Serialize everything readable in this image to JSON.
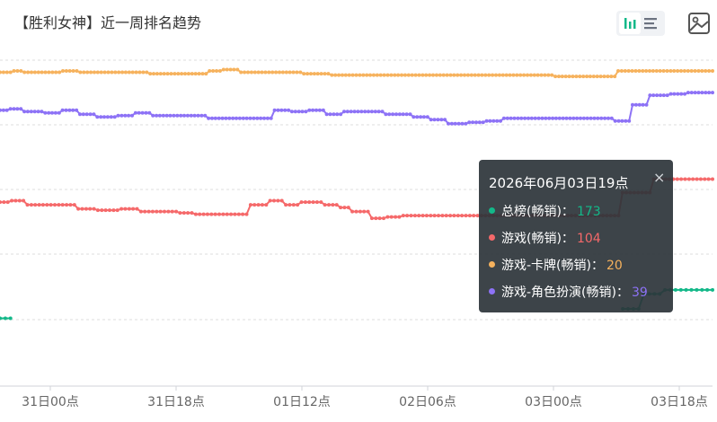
{
  "header": {
    "title": "【胜利女神】近一周排名趋势",
    "icons": {
      "bar_view": "bar-chart-icon",
      "list_view": "list-icon",
      "save_image": "image-icon"
    }
  },
  "chart_data": {
    "type": "line",
    "x_ticks": [
      "31日00点",
      "31日18点",
      "01日12点",
      "02日06点",
      "03日00点",
      "03日18点"
    ],
    "y_axis": {
      "inverse": true,
      "range": [
        0,
        250
      ],
      "grid": true
    },
    "series": [
      {
        "name": "总榜(畅销)",
        "color": "#13b889",
        "values": [
          203,
          203,
          203,
          null,
          null,
          null,
          null,
          null,
          null,
          null,
          null,
          null,
          null,
          null,
          null,
          null,
          null,
          null,
          null,
          null,
          null,
          null,
          null,
          null,
          null,
          null,
          null,
          null,
          null,
          null,
          null,
          null,
          null,
          null,
          null,
          null,
          null,
          null,
          null,
          null,
          null,
          null,
          null,
          null,
          null,
          null,
          null,
          null,
          null,
          null,
          null,
          null,
          null,
          null,
          null,
          null,
          null,
          null,
          null,
          null,
          null,
          null,
          null,
          null,
          null,
          null,
          null,
          null,
          null,
          null,
          null,
          null,
          null,
          null,
          null,
          null,
          null,
          null,
          null,
          null,
          null,
          null,
          null,
          null,
          null,
          null,
          null,
          null,
          null,
          null,
          null,
          null,
          null,
          null,
          null,
          null,
          null,
          null,
          null,
          null,
          null,
          null,
          null,
          null,
          null,
          null,
          null,
          null,
          null,
          null,
          null,
          null,
          null,
          null,
          null,
          null,
          null,
          null,
          196,
          196,
          196,
          196,
          185,
          185,
          185,
          185,
          182,
          182,
          182,
          182,
          182,
          182,
          182,
          182,
          182,
          182
        ]
      },
      {
        "name": "游戏(畅销)",
        "color": "#f5696a",
        "values": [
          117,
          117,
          117,
          116,
          116,
          116,
          116,
          119,
          119,
          119,
          119,
          119,
          119,
          119,
          119,
          119,
          119,
          119,
          119,
          119,
          122,
          122,
          122,
          122,
          122,
          123,
          123,
          123,
          123,
          123,
          123,
          122,
          122,
          122,
          122,
          122,
          124,
          124,
          124,
          124,
          124,
          124,
          124,
          124,
          124,
          124,
          125,
          125,
          125,
          125,
          126,
          126,
          126,
          126,
          126,
          126,
          126,
          126,
          126,
          126,
          126,
          126,
          126,
          126,
          119,
          119,
          119,
          119,
          119,
          116,
          116,
          116,
          116,
          119,
          119,
          119,
          119,
          117,
          117,
          117,
          117,
          117,
          117,
          119,
          119,
          119,
          119,
          121,
          121,
          121,
          124,
          124,
          124,
          124,
          124,
          129,
          129,
          129,
          129,
          128,
          128,
          128,
          128,
          127,
          127,
          127,
          127,
          127,
          127,
          127,
          127,
          127,
          127,
          127,
          127,
          127,
          127,
          127,
          127,
          127,
          127,
          127,
          127,
          127,
          127,
          127,
          127,
          127,
          127,
          127,
          127,
          127,
          127,
          127,
          127,
          127,
          127,
          127,
          127,
          127,
          127,
          127,
          127,
          127,
          127,
          127,
          127,
          127,
          127,
          127,
          127,
          127,
          127,
          127,
          127,
          127,
          127,
          127,
          127,
          110,
          110,
          110,
          110,
          110,
          110,
          110,
          110,
          100,
          100,
          100,
          100,
          100,
          100,
          100,
          100,
          100,
          100,
          100,
          100,
          100,
          100,
          100,
          100
        ]
      },
      {
        "name": "游戏-卡牌(畅销)",
        "color": "#f6b25d",
        "values": [
          21,
          21,
          21,
          21,
          20,
          20,
          20,
          21,
          21,
          21,
          21,
          21,
          21,
          21,
          21,
          21,
          21,
          21,
          20,
          20,
          20,
          20,
          20,
          21,
          21,
          21,
          21,
          21,
          21,
          21,
          21,
          21,
          21,
          21,
          21,
          21,
          21,
          21,
          21,
          21,
          21,
          21,
          21,
          22,
          22,
          22,
          22,
          22,
          22,
          22,
          22,
          22,
          22,
          22,
          22,
          22,
          22,
          22,
          22,
          22,
          20,
          20,
          20,
          20,
          19,
          19,
          19,
          19,
          19,
          21,
          21,
          21,
          21,
          21,
          21,
          21,
          21,
          21,
          21,
          21,
          21,
          21,
          21,
          21,
          21,
          21,
          21,
          22,
          22,
          22,
          22,
          22,
          22,
          22,
          22,
          23,
          23,
          23,
          23,
          23,
          23,
          23,
          23,
          23,
          23,
          23,
          23,
          23,
          23,
          23,
          23,
          23,
          23,
          23,
          23,
          23,
          23,
          23,
          23,
          23,
          23,
          23,
          23,
          23,
          23,
          23,
          23,
          23,
          23,
          23,
          23,
          23,
          23,
          23,
          23,
          23,
          23,
          23,
          23,
          23,
          23,
          23,
          23,
          23,
          23,
          23,
          23,
          23,
          23,
          23,
          23,
          23,
          23,
          23,
          23,
          23,
          23,
          23,
          23,
          24,
          24,
          24,
          24,
          24,
          24,
          24,
          24,
          24,
          24,
          24,
          24,
          24,
          24,
          24,
          24,
          24,
          24,
          20,
          20,
          20,
          20,
          20,
          20,
          20,
          20,
          20,
          20,
          20,
          20,
          20,
          20,
          20,
          20,
          20,
          20,
          20,
          20,
          20,
          20,
          20,
          20,
          20,
          20,
          20,
          20
        ]
      },
      {
        "name": "游戏-角色扮演(畅销)",
        "color": "#8d72f6",
        "values": [
          49,
          49,
          49,
          48,
          48,
          48,
          48,
          50,
          50,
          50,
          50,
          50,
          50,
          51,
          51,
          51,
          51,
          51,
          49,
          49,
          49,
          49,
          49,
          52,
          52,
          52,
          52,
          52,
          54,
          54,
          54,
          54,
          54,
          54,
          53,
          53,
          53,
          53,
          53,
          51,
          51,
          51,
          51,
          51,
          53,
          53,
          53,
          53,
          53,
          53,
          53,
          53,
          53,
          53,
          53,
          53,
          53,
          53,
          53,
          53,
          55,
          55,
          55,
          55,
          55,
          55,
          55,
          55,
          55,
          55,
          55,
          55,
          55,
          55,
          55,
          55,
          55,
          55,
          55,
          49,
          49,
          49,
          49,
          49,
          50,
          50,
          50,
          50,
          50,
          49,
          49,
          49,
          49,
          49,
          52,
          52,
          52,
          52,
          52,
          50,
          50,
          50,
          50,
          50,
          50,
          50,
          50,
          50,
          50,
          50,
          50,
          52,
          52,
          52,
          52,
          52,
          52,
          52,
          52,
          54,
          54,
          54,
          54,
          54,
          56,
          56,
          56,
          56,
          56,
          59,
          59,
          59,
          59,
          59,
          59,
          58,
          58,
          58,
          58,
          58,
          57,
          57,
          57,
          57,
          57,
          55,
          55,
          55,
          55,
          55,
          55,
          55,
          55,
          55,
          55,
          55,
          55,
          55,
          55,
          55,
          55,
          55,
          55,
          55,
          55,
          55,
          55,
          55,
          55,
          55,
          55,
          55,
          55,
          55,
          55,
          55,
          55,
          57,
          57,
          57,
          57,
          57,
          45,
          45,
          45,
          45,
          45,
          38,
          38,
          38,
          38,
          38,
          38,
          37,
          37,
          37,
          37,
          37,
          36,
          36,
          36,
          36,
          36,
          36,
          36,
          36
        ]
      }
    ]
  },
  "tooltip": {
    "title": "2026年06月03日19点",
    "close_symbol": "×",
    "rows": [
      {
        "label": "总榜(畅销)：",
        "value": "173",
        "color": "#13b889"
      },
      {
        "label": "游戏(畅销)：",
        "value": "104",
        "color": "#f5696a"
      },
      {
        "label": "游戏-卡牌(畅销)：",
        "value": "20",
        "color": "#f6b25d"
      },
      {
        "label": "游戏-角色扮演(畅销)：",
        "value": "39",
        "color": "#8d72f6"
      }
    ]
  }
}
